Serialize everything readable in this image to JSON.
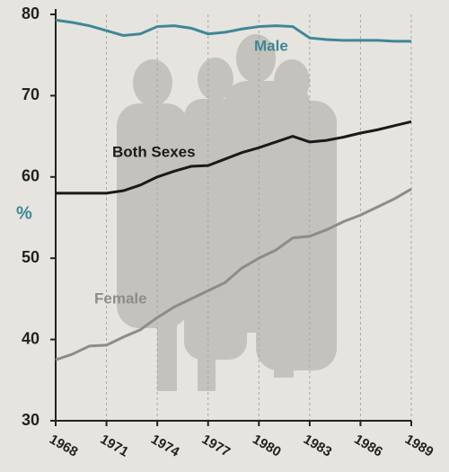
{
  "chart_data": {
    "type": "line",
    "x": [
      1968,
      1969,
      1970,
      1971,
      1972,
      1973,
      1974,
      1975,
      1976,
      1977,
      1978,
      1979,
      1980,
      1981,
      1982,
      1983,
      1984,
      1985,
      1986,
      1987,
      1988,
      1989
    ],
    "series": [
      {
        "name": "Male",
        "color": "#3d8797",
        "values": [
          79.3,
          79.0,
          78.6,
          78.0,
          77.4,
          77.6,
          78.5,
          78.6,
          78.3,
          77.6,
          77.8,
          78.2,
          78.5,
          78.6,
          78.5,
          77.1,
          76.9,
          76.8,
          76.8,
          76.8,
          76.7,
          76.7
        ]
      },
      {
        "name": "Both Sexes",
        "color": "#1a1a1a",
        "values": [
          58.0,
          58.0,
          58.0,
          58.0,
          58.3,
          59.0,
          60.0,
          60.7,
          61.3,
          61.4,
          62.2,
          63.0,
          63.6,
          64.3,
          65.0,
          64.3,
          64.5,
          64.9,
          65.4,
          65.8,
          66.3,
          66.8
        ]
      },
      {
        "name": "Female",
        "color": "#8c8c8c",
        "values": [
          37.5,
          38.2,
          39.2,
          39.3,
          40.3,
          41.2,
          42.7,
          44.0,
          45.0,
          46.0,
          47.0,
          48.8,
          50.0,
          51.0,
          52.5,
          52.7,
          53.5,
          54.5,
          55.3,
          56.3,
          57.3,
          58.5
        ]
      }
    ],
    "y_label": "%",
    "xlim": [
      1968,
      1989
    ],
    "xticks": [
      1968,
      1971,
      1974,
      1977,
      1980,
      1983,
      1986,
      1989
    ],
    "ylim": [
      30,
      80
    ],
    "yticks": [
      30,
      40,
      50,
      60,
      70,
      80
    ],
    "grid": true
  }
}
